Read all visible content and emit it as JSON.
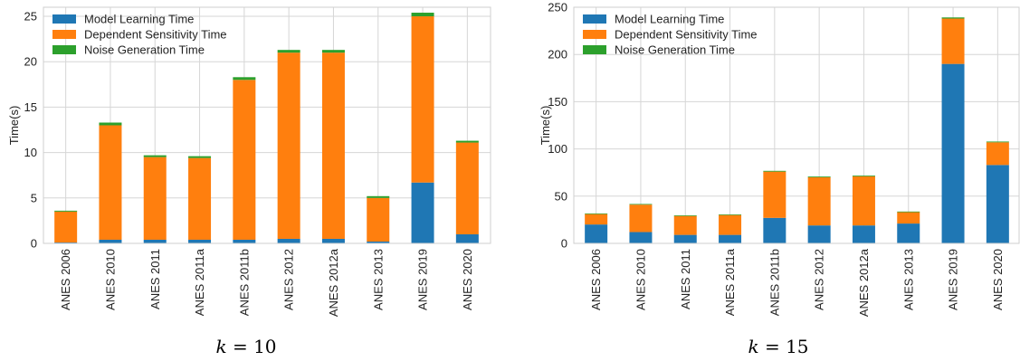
{
  "chart_data": [
    {
      "type": "bar",
      "stacked": true,
      "caption": "k = 10",
      "title": "",
      "xlabel": "",
      "ylabel": "Time(s)",
      "ylim": [
        0,
        26
      ],
      "yticks": [
        0,
        5,
        10,
        15,
        20,
        25
      ],
      "grid": true,
      "legend_position": "top-left",
      "categories": [
        "ANES 2006",
        "ANES 2010",
        "ANES 2011",
        "ANES 2011a",
        "ANES 2011b",
        "ANES 2012",
        "ANES 2012a",
        "ANES 2013",
        "ANES 2019",
        "ANES 2020"
      ],
      "series": [
        {
          "name": "Model Learning Time",
          "color": "#1f77b4",
          "values": [
            0.1,
            0.4,
            0.4,
            0.4,
            0.4,
            0.5,
            0.5,
            0.2,
            6.7,
            1.0
          ]
        },
        {
          "name": "Dependent Sensitivity Time",
          "color": "#ff7f0e",
          "values": [
            3.4,
            12.6,
            9.1,
            9.0,
            17.6,
            20.5,
            20.5,
            4.8,
            18.3,
            10.1
          ]
        },
        {
          "name": "Noise Generation Time",
          "color": "#2ca02c",
          "values": [
            0.1,
            0.3,
            0.2,
            0.2,
            0.3,
            0.3,
            0.3,
            0.2,
            0.4,
            0.2
          ]
        }
      ]
    },
    {
      "type": "bar",
      "stacked": true,
      "caption": "k = 15",
      "title": "",
      "xlabel": "",
      "ylabel": "Time(s)",
      "ylim": [
        0,
        250
      ],
      "yticks": [
        0,
        50,
        100,
        150,
        200,
        250
      ],
      "grid": true,
      "legend_position": "top-left",
      "categories": [
        "ANES 2006",
        "ANES 2010",
        "ANES 2011",
        "ANES 2011a",
        "ANES 2011b",
        "ANES 2012",
        "ANES 2012a",
        "ANES 2013",
        "ANES 2019",
        "ANES 2020"
      ],
      "series": [
        {
          "name": "Model Learning Time",
          "color": "#1f77b4",
          "values": [
            20,
            12,
            9,
            9,
            27,
            19,
            19,
            21,
            190,
            83
          ]
        },
        {
          "name": "Dependent Sensitivity Time",
          "color": "#ff7f0e",
          "values": [
            11,
            29,
            20,
            21,
            49,
            51,
            52,
            12,
            48,
            24
          ]
        },
        {
          "name": "Noise Generation Time",
          "color": "#2ca02c",
          "values": [
            0.7,
            0.7,
            0.7,
            0.7,
            0.8,
            0.8,
            0.8,
            0.7,
            1.2,
            0.8
          ]
        }
      ]
    }
  ]
}
